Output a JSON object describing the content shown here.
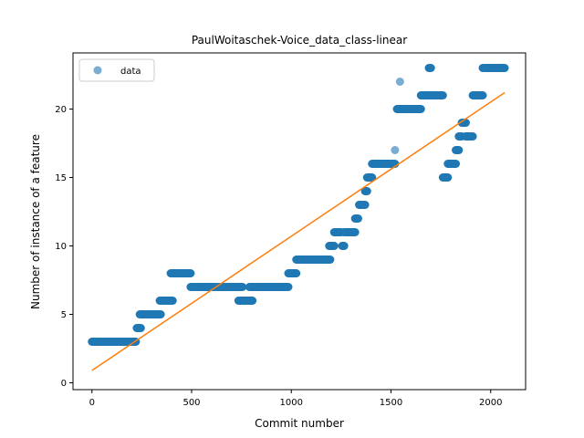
{
  "chart_data": {
    "type": "scatter",
    "title": "PaulWoitaschek-Voice_data_class-linear",
    "xlabel": "Commit number",
    "ylabel": "Number of instance of a feature",
    "xlim": [
      -95,
      2175
    ],
    "ylim": [
      -0.5,
      24.1
    ],
    "x_ticks": [
      0,
      500,
      1000,
      1500,
      2000
    ],
    "y_ticks": [
      0,
      5,
      10,
      15,
      20
    ],
    "grid": false,
    "legend": {
      "position": "top-left",
      "entries": [
        "data"
      ]
    },
    "colors": {
      "data": "#1f77b4",
      "fit": "#ff7f0e",
      "axes": "#000000"
    },
    "series": [
      {
        "name": "data",
        "kind": "scatter",
        "segments": [
          {
            "x0": 0,
            "x1": 220,
            "y": 3
          },
          {
            "x0": 225,
            "x1": 245,
            "y": 4
          },
          {
            "x0": 240,
            "x1": 345,
            "y": 5
          },
          {
            "x0": 340,
            "x1": 405,
            "y": 6
          },
          {
            "x0": 395,
            "x1": 495,
            "y": 8
          },
          {
            "x0": 495,
            "x1": 755,
            "y": 7
          },
          {
            "x0": 735,
            "x1": 805,
            "y": 6
          },
          {
            "x0": 790,
            "x1": 985,
            "y": 7
          },
          {
            "x0": 985,
            "x1": 1025,
            "y": 8
          },
          {
            "x0": 1025,
            "x1": 1195,
            "y": 9
          },
          {
            "x0": 1190,
            "x1": 1215,
            "y": 10
          },
          {
            "x0": 1215,
            "x1": 1250,
            "y": 11
          },
          {
            "x0": 1255,
            "x1": 1265,
            "y": 10
          },
          {
            "x0": 1265,
            "x1": 1320,
            "y": 11
          },
          {
            "x0": 1320,
            "x1": 1335,
            "y": 12
          },
          {
            "x0": 1340,
            "x1": 1370,
            "y": 13
          },
          {
            "x0": 1370,
            "x1": 1380,
            "y": 14
          },
          {
            "x0": 1380,
            "x1": 1405,
            "y": 15
          },
          {
            "x0": 1405,
            "x1": 1520,
            "y": 16
          },
          {
            "x0": 1530,
            "x1": 1650,
            "y": 20
          },
          {
            "x0": 1650,
            "x1": 1760,
            "y": 21
          },
          {
            "x0": 1690,
            "x1": 1700,
            "y": 23
          },
          {
            "x0": 1760,
            "x1": 1785,
            "y": 15
          },
          {
            "x0": 1785,
            "x1": 1825,
            "y": 16
          },
          {
            "x0": 1825,
            "x1": 1840,
            "y": 17
          },
          {
            "x0": 1840,
            "x1": 1855,
            "y": 18
          },
          {
            "x0": 1855,
            "x1": 1875,
            "y": 19
          },
          {
            "x0": 1875,
            "x1": 1910,
            "y": 18
          },
          {
            "x0": 1910,
            "x1": 1960,
            "y": 21
          },
          {
            "x0": 1960,
            "x1": 2070,
            "y": 23
          }
        ],
        "points": [
          {
            "x": 1520,
            "y": 17
          },
          {
            "x": 1545,
            "y": 22
          }
        ]
      },
      {
        "kind": "line",
        "points": [
          {
            "x": 0,
            "y": 0.9
          },
          {
            "x": 2070,
            "y": 21.2
          }
        ]
      }
    ]
  }
}
